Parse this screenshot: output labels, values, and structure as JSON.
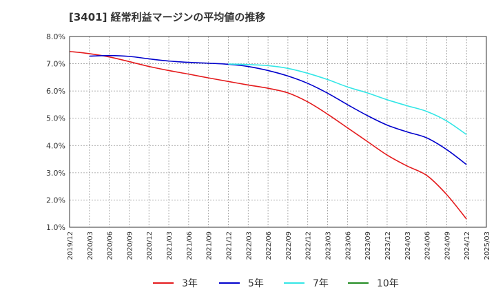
{
  "chart_data": {
    "type": "line",
    "title": "[3401]  経常利益マージンの平均値の推移",
    "xlabel": "",
    "ylabel": "",
    "x_ticks": [
      "2019/12",
      "2020/03",
      "2020/06",
      "2020/09",
      "2020/12",
      "2021/03",
      "2021/06",
      "2021/09",
      "2021/12",
      "2022/03",
      "2022/06",
      "2022/09",
      "2022/12",
      "2023/03",
      "2023/06",
      "2023/09",
      "2023/12",
      "2024/03",
      "2024/06",
      "2024/09",
      "2024/12",
      "2025/03"
    ],
    "y_ticks": [
      "1.0%",
      "2.0%",
      "3.0%",
      "4.0%",
      "5.0%",
      "6.0%",
      "7.0%",
      "8.0%"
    ],
    "ylim": [
      1.0,
      8.0
    ],
    "grid": true,
    "legend_position": "bottom",
    "series": [
      {
        "name": "3年",
        "color": "#e41a1c",
        "x": [
          "2019/12",
          "2020/03",
          "2020/06",
          "2020/09",
          "2020/12",
          "2021/03",
          "2021/06",
          "2021/09",
          "2021/12",
          "2022/03",
          "2022/06",
          "2022/09",
          "2022/12",
          "2023/03",
          "2023/06",
          "2023/09",
          "2023/12",
          "2024/03",
          "2024/06",
          "2024/09",
          "2024/12"
        ],
        "values": [
          7.45,
          7.37,
          7.25,
          7.08,
          6.9,
          6.75,
          6.62,
          6.48,
          6.35,
          6.22,
          6.1,
          5.93,
          5.6,
          5.15,
          4.65,
          4.15,
          3.65,
          3.25,
          2.9,
          2.2,
          1.3
        ]
      },
      {
        "name": "5年",
        "color": "#0000cc",
        "x": [
          "2020/03",
          "2020/06",
          "2020/09",
          "2020/12",
          "2021/03",
          "2021/06",
          "2021/09",
          "2021/12",
          "2022/03",
          "2022/06",
          "2022/09",
          "2022/12",
          "2023/03",
          "2023/06",
          "2023/09",
          "2023/12",
          "2024/03",
          "2024/06",
          "2024/09",
          "2024/12"
        ],
        "values": [
          7.28,
          7.3,
          7.27,
          7.18,
          7.1,
          7.05,
          7.02,
          6.98,
          6.9,
          6.75,
          6.55,
          6.28,
          5.92,
          5.5,
          5.1,
          4.75,
          4.5,
          4.28,
          3.85,
          3.3
        ]
      },
      {
        "name": "7年",
        "color": "#33e6e6",
        "x": [
          "2021/12",
          "2022/03",
          "2022/06",
          "2022/09",
          "2022/12",
          "2023/03",
          "2023/06",
          "2023/09",
          "2023/12",
          "2024/03",
          "2024/06",
          "2024/09",
          "2024/12"
        ],
        "values": [
          6.99,
          6.97,
          6.93,
          6.83,
          6.65,
          6.42,
          6.15,
          5.93,
          5.68,
          5.46,
          5.25,
          4.9,
          4.4
        ]
      },
      {
        "name": "10年",
        "color": "#228b22",
        "x": [],
        "values": []
      }
    ]
  }
}
